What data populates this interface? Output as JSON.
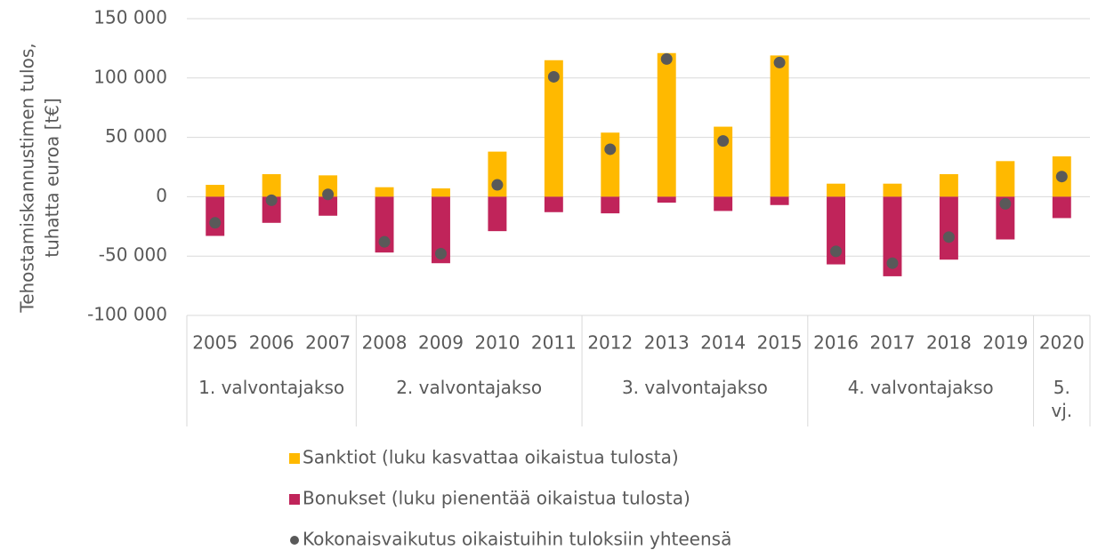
{
  "chart_data": {
    "type": "bar",
    "stacked": true,
    "ylabel": [
      "Tehostamiskannustimen tulos,",
      "tuhatta euroa [t€]"
    ],
    "groups": [
      {
        "label": "1. valvontajakso",
        "categories": [
          "2005",
          "2006",
          "2007"
        ]
      },
      {
        "label": "2. valvontajakso",
        "categories": [
          "2008",
          "2009",
          "2010",
          "2011"
        ]
      },
      {
        "label": "3. valvontajakso",
        "categories": [
          "2012",
          "2013",
          "2014",
          "2015"
        ]
      },
      {
        "label": "4. valvontajakso",
        "categories": [
          "2016",
          "2017",
          "2018",
          "2019"
        ]
      },
      {
        "label": "5. vj.",
        "categories": [
          "2020"
        ]
      }
    ],
    "series": [
      {
        "name": "Sanktiot (luku kasvattaa oikaistua tulosta)",
        "type": "bar",
        "color": "#ffb900",
        "values": [
          10000,
          19000,
          18000,
          8000,
          7000,
          38000,
          115000,
          54000,
          121000,
          59000,
          119000,
          11000,
          11000,
          19000,
          30000,
          34000
        ]
      },
      {
        "name": "Bonukset (luku pienentää oikaistua tulosta)",
        "type": "bar",
        "color": "#c0245a",
        "values": [
          -33000,
          -22000,
          -16000,
          -47000,
          -56000,
          -29000,
          -13000,
          -14000,
          -5000,
          -12000,
          -7000,
          -57000,
          -67000,
          -53000,
          -36000,
          -18000
        ]
      },
      {
        "name": "Kokonaisvaikutus oikaistuihin tuloksiin yhteensä",
        "type": "scatter",
        "color": "#595959",
        "values": [
          -22000,
          -3000,
          2000,
          -38000,
          -48000,
          10000,
          101000,
          40000,
          116000,
          47000,
          113000,
          -46000,
          -56000,
          -34000,
          -6000,
          17000
        ]
      }
    ],
    "ylim": [
      -100000,
      150000
    ],
    "yticks": [
      {
        "value": -100000,
        "label": "-100 000"
      },
      {
        "value": -50000,
        "label": "-50 000"
      },
      0,
      {
        "value": 50000,
        "label": "50 000"
      },
      {
        "value": 100000,
        "label": "100 000"
      },
      {
        "value": 150000,
        "label": "150 000"
      }
    ],
    "grid": true,
    "legend": "bottom"
  }
}
